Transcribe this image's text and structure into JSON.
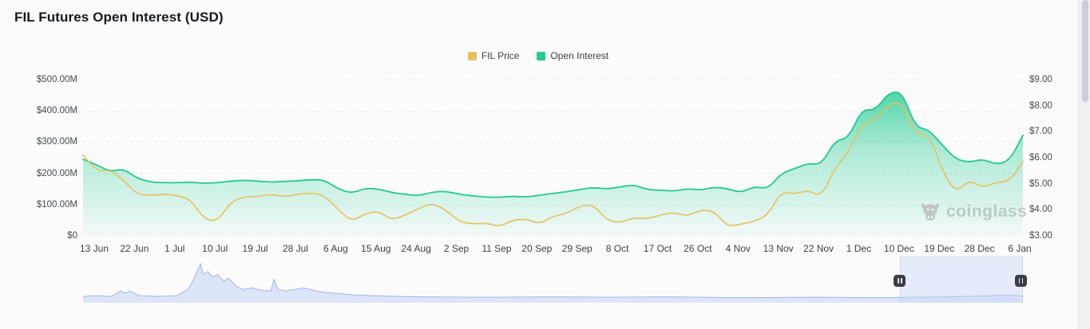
{
  "header": {
    "title": "FIL Futures Open Interest (USD)"
  },
  "legend": {
    "items": [
      {
        "label": "FIL Price",
        "color": "#e7c05c"
      },
      {
        "label": "Open Interest",
        "color": "#25c98e"
      }
    ]
  },
  "watermark": {
    "text": "coinglass"
  },
  "colors": {
    "background": "#fbfbfc",
    "title_text": "#17191c",
    "axis_text": "#46494e",
    "grid": "#e7e8ea",
    "price_line": "#e7c05c",
    "oi_line": "#22c993",
    "oi_fill_top": "rgba(46,206,151,0.92)",
    "oi_fill_bottom": "rgba(46,206,151,0.04)",
    "navigator_line": "#a3b4e8",
    "navigator_fill": "#dce4f8",
    "selection_overlay": "rgba(201,213,246,0.40)",
    "handle": "#383d49",
    "scrollbar_thumb": "#c9cdd8"
  },
  "chart_data": {
    "type": "line",
    "title": "FIL Futures Open Interest (USD)",
    "x_start": "10 Jun",
    "x_step_days": 3,
    "x_tick_labels": [
      "13 Jun",
      "22 Jun",
      "1 Jul",
      "10 Jul",
      "19 Jul",
      "28 Jul",
      "6 Aug",
      "15 Aug",
      "24 Aug",
      "2 Sep",
      "11 Sep",
      "20 Sep",
      "29 Sep",
      "8 Oct",
      "17 Oct",
      "26 Oct",
      "4 Nov",
      "13 Nov",
      "22 Nov",
      "1 Dec",
      "10 Dec",
      "19 Dec",
      "28 Dec",
      "6 Jan"
    ],
    "left_axis": {
      "labels": [
        "$500.00M",
        "$400.00M",
        "$300.00M",
        "$200.00M",
        "$100.00M",
        "$0"
      ],
      "min": 0,
      "max": 500,
      "unit": "USD millions"
    },
    "right_axis": {
      "labels": [
        "$9.00",
        "$8.00",
        "$7.00",
        "$6.00",
        "$5.00",
        "$4.00",
        "$3.00"
      ],
      "min": 3,
      "max": 9,
      "unit": "USD"
    },
    "grid": "dashed-horizontal",
    "legend_position": "top-center",
    "series": [
      {
        "name": "Open Interest",
        "axis": "left",
        "color": "#22c993",
        "unit": "USD millions",
        "values": [
          245,
          228,
          205,
          215,
          185,
          172,
          170,
          170,
          172,
          168,
          170,
          175,
          178,
          175,
          172,
          174,
          176,
          180,
          178,
          150,
          136,
          152,
          150,
          138,
          133,
          128,
          140,
          143,
          133,
          128,
          124,
          123,
          127,
          124,
          130,
          136,
          141,
          148,
          155,
          150,
          156,
          164,
          148,
          146,
          143,
          151,
          146,
          156,
          151,
          138,
          158,
          150,
          200,
          215,
          232,
          228,
          305,
          312,
          405,
          402,
          458,
          462,
          348,
          340,
          290,
          245,
          235,
          246,
          228,
          240,
          322
        ]
      },
      {
        "name": "FIL Price",
        "axis": "right",
        "color": "#e7c05c",
        "unit": "USD",
        "values": [
          6.1,
          5.45,
          5.55,
          5.15,
          4.6,
          4.55,
          4.6,
          4.55,
          4.4,
          3.65,
          3.55,
          4.3,
          4.5,
          4.5,
          4.6,
          4.5,
          4.6,
          4.65,
          4.55,
          4.0,
          3.55,
          3.85,
          3.95,
          3.6,
          3.8,
          4.05,
          4.25,
          4.0,
          3.55,
          3.45,
          3.5,
          3.35,
          3.6,
          3.65,
          3.45,
          3.75,
          3.85,
          4.15,
          4.2,
          3.6,
          3.5,
          3.7,
          3.65,
          3.8,
          3.9,
          3.75,
          4.0,
          3.95,
          3.35,
          3.45,
          3.55,
          3.8,
          4.7,
          4.6,
          4.75,
          4.5,
          5.6,
          6.2,
          7.3,
          7.45,
          8.05,
          8.15,
          6.85,
          6.95,
          5.5,
          4.65,
          5.15,
          4.85,
          5.05,
          5.1,
          5.85
        ]
      }
    ],
    "navigator": {
      "x": [
        0,
        0.015,
        0.03,
        0.04,
        0.045,
        0.05,
        0.06,
        0.08,
        0.1,
        0.112,
        0.118,
        0.125,
        0.128,
        0.133,
        0.138,
        0.143,
        0.15,
        0.155,
        0.163,
        0.17,
        0.18,
        0.19,
        0.2,
        0.203,
        0.207,
        0.215,
        0.225,
        0.235,
        0.245,
        0.255,
        0.27,
        0.29,
        0.32,
        0.36,
        0.42,
        0.5,
        0.56,
        0.62,
        0.7,
        0.78,
        0.85,
        0.92,
        0.96,
        0.98,
        1.0
      ],
      "h": [
        0.16,
        0.18,
        0.16,
        0.3,
        0.24,
        0.3,
        0.18,
        0.16,
        0.18,
        0.35,
        0.62,
        1.0,
        0.72,
        0.8,
        0.66,
        0.72,
        0.55,
        0.63,
        0.42,
        0.34,
        0.38,
        0.32,
        0.3,
        0.6,
        0.35,
        0.3,
        0.34,
        0.38,
        0.32,
        0.27,
        0.24,
        0.2,
        0.17,
        0.15,
        0.14,
        0.15,
        0.14,
        0.15,
        0.13,
        0.14,
        0.13,
        0.15,
        0.17,
        0.2,
        0.17
      ],
      "selection": {
        "start": 0.869,
        "end": 0.998
      }
    }
  }
}
